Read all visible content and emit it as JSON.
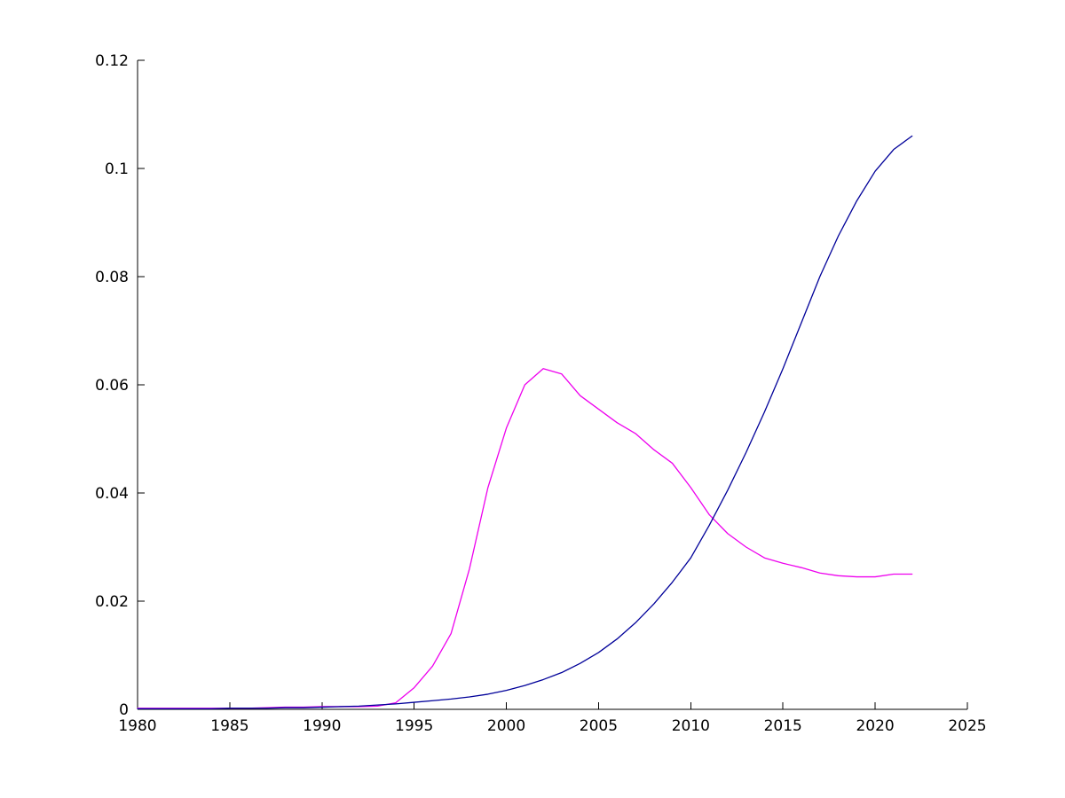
{
  "chart_data": {
    "type": "line",
    "title": "",
    "xlabel": "",
    "ylabel": "",
    "xlim": [
      1980,
      2025
    ],
    "ylim": [
      0,
      0.12
    ],
    "grid": false,
    "legend_position": "none",
    "box": false,
    "x_ticks": [
      1980,
      1985,
      1990,
      1995,
      2000,
      2005,
      2010,
      2015,
      2020,
      2025
    ],
    "x_tick_labels": [
      "1980",
      "1985",
      "1990",
      "1995",
      "2000",
      "2005",
      "2010",
      "2015",
      "2020",
      "2025"
    ],
    "y_ticks": [
      0,
      0.02,
      0.04,
      0.06,
      0.08,
      0.1,
      0.12
    ],
    "y_tick_labels": [
      "0",
      "0.02",
      "0.04",
      "0.06",
      "0.08",
      "0.1",
      "0.12"
    ],
    "x": [
      1980,
      1981,
      1982,
      1983,
      1984,
      1985,
      1986,
      1987,
      1988,
      1989,
      1990,
      1991,
      1992,
      1993,
      1994,
      1995,
      1996,
      1997,
      1998,
      1999,
      2000,
      2001,
      2002,
      2003,
      2004,
      2005,
      2006,
      2007,
      2008,
      2009,
      2010,
      2011,
      2012,
      2013,
      2014,
      2015,
      2016,
      2017,
      2018,
      2019,
      2020,
      2021,
      2022
    ],
    "series": [
      {
        "name": "magenta-series",
        "color": "#EE00EE",
        "values": [
          0.0002,
          0.0002,
          0.0002,
          0.0002,
          0.0002,
          0.0002,
          0.0002,
          0.0003,
          0.0004,
          0.0004,
          0.0005,
          0.0005,
          0.0005,
          0.0006,
          0.0012,
          0.004,
          0.008,
          0.014,
          0.026,
          0.041,
          0.052,
          0.06,
          0.063,
          0.062,
          0.058,
          0.0555,
          0.053,
          0.051,
          0.048,
          0.0455,
          0.041,
          0.036,
          0.0325,
          0.03,
          0.028,
          0.027,
          0.0262,
          0.0252,
          0.0247,
          0.0245,
          0.0245,
          0.025,
          0.025
        ]
      },
      {
        "name": "blue-series",
        "color": "#000099",
        "values": [
          0.0001,
          0.0001,
          0.0001,
          0.0001,
          0.0001,
          0.0002,
          0.0002,
          0.0002,
          0.0003,
          0.0003,
          0.0004,
          0.0005,
          0.0006,
          0.0008,
          0.001,
          0.0013,
          0.0016,
          0.0019,
          0.0023,
          0.0028,
          0.0035,
          0.0044,
          0.0055,
          0.0068,
          0.0085,
          0.0105,
          0.013,
          0.016,
          0.0195,
          0.0235,
          0.028,
          0.034,
          0.0405,
          0.0475,
          0.055,
          0.063,
          0.0715,
          0.08,
          0.0875,
          0.094,
          0.0995,
          0.1035,
          0.106
        ]
      }
    ],
    "axis_color": "#000000",
    "background_color": "#ffffff"
  }
}
